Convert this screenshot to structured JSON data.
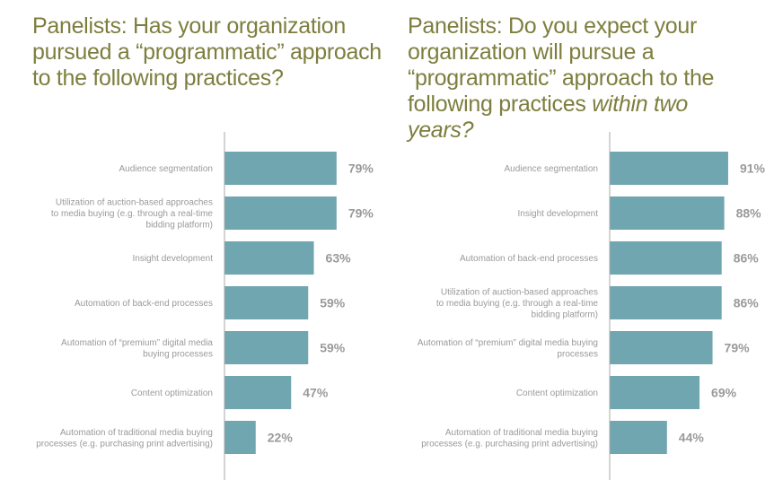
{
  "chart_data": [
    {
      "type": "bar",
      "orientation": "horizontal",
      "title_lines": [
        "Panelists: Has your organization",
        "pursued a “programmatic” approach",
        "to the following practices?"
      ],
      "title_emphasis": "",
      "categories": [
        [
          "Audience segmentation"
        ],
        [
          "Utilization of auction-based approaches",
          "to media buying (e.g. through a real-time",
          "bidding platform)"
        ],
        [
          "Insight development"
        ],
        [
          "Automation of back-end processes"
        ],
        [
          "Automation of “premium” digital media",
          "buying processes"
        ],
        [
          "Content optimization"
        ],
        [
          "Automation of traditional media buying",
          "processes (e.g. purchasing print advertising)"
        ]
      ],
      "values": [
        79,
        79,
        63,
        59,
        59,
        47,
        22
      ],
      "value_labels": [
        "79%",
        "79%",
        "63%",
        "59%",
        "59%",
        "47%",
        "22%"
      ],
      "bar_color": "#6fa6b0",
      "xlim": [
        0,
        100
      ]
    },
    {
      "type": "bar",
      "orientation": "horizontal",
      "title_lines": [
        "Panelists: Do you expect your",
        "organization will pursue a",
        "“programmatic” approach to the",
        "following practices "
      ],
      "title_emphasis": "within two years?",
      "categories": [
        [
          "Audience segmentation"
        ],
        [
          "Insight development"
        ],
        [
          "Automation of back-end processes"
        ],
        [
          "Utilization of auction-based approaches",
          "to media buying (e.g. through a real-time",
          "bidding platform)"
        ],
        [
          "Automation of “premium” digital media buying",
          "processes"
        ],
        [
          "Content optimization"
        ],
        [
          "Automation of traditional media buying",
          "processes (e.g. purchasing print advertising)"
        ]
      ],
      "values": [
        91,
        88,
        86,
        86,
        79,
        69,
        44
      ],
      "value_labels": [
        "91%",
        "88%",
        "86%",
        "86%",
        "79%",
        "69%",
        "44%"
      ],
      "bar_color": "#6fa6b0",
      "xlim": [
        0,
        100
      ]
    }
  ]
}
